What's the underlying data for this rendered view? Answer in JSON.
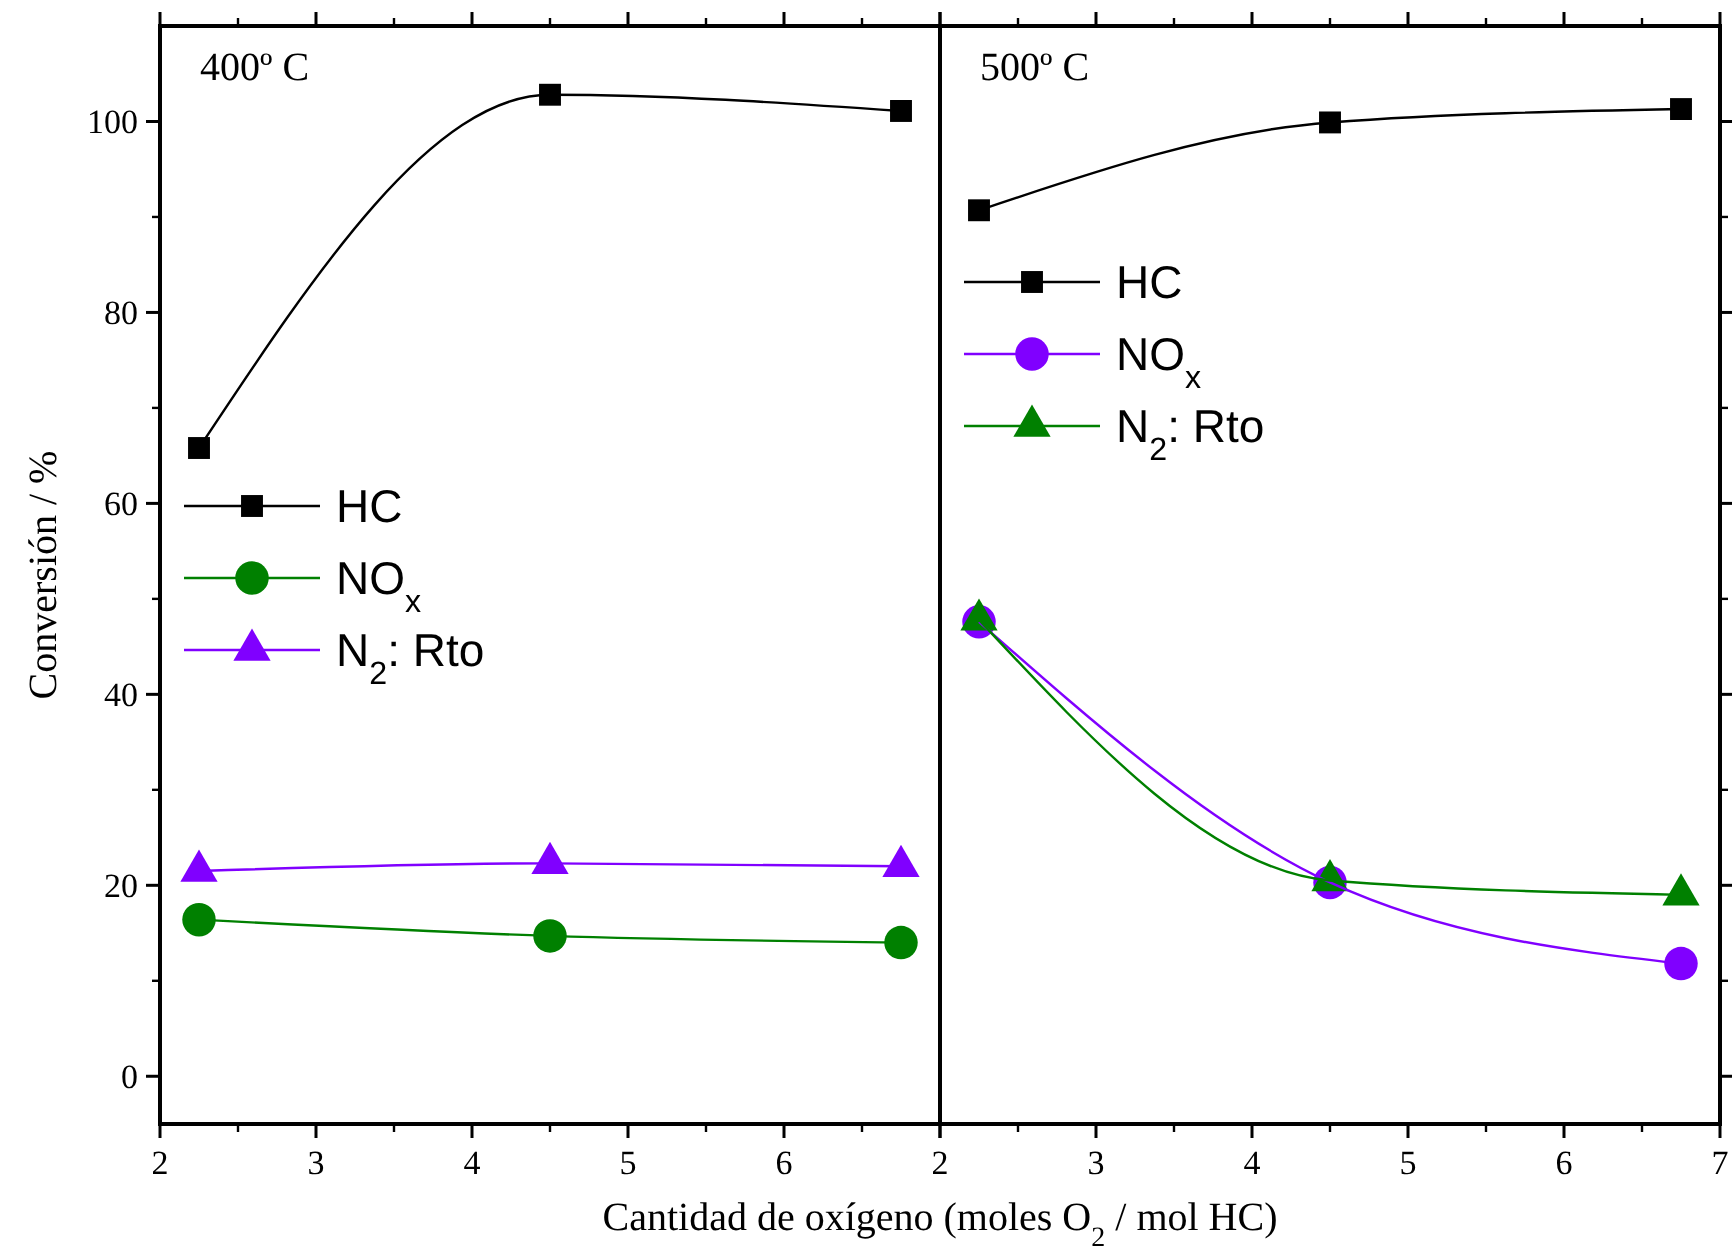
{
  "chart_data": [
    {
      "type": "line",
      "title": "400º C",
      "ylabel": "Conversión / %",
      "xlabel": "Cantidad de oxígeno (moles O$_{2}$ / mol HC)",
      "xlim": [
        2,
        7
      ],
      "xticks": [
        2,
        3,
        4,
        5,
        6,
        {
          "value": 7,
          "label": null
        }
      ],
      "ylim": [
        -5,
        110
      ],
      "yticks": [
        0,
        20,
        40,
        60,
        80,
        100
      ],
      "legend": "left",
      "line_style": "solid",
      "series": [
        {
          "name": "HC",
          "color": "#000000",
          "marker": "square",
          "x": [
            2.25,
            4.5,
            6.75
          ],
          "values": [
            65.8,
            102.8,
            101.1
          ]
        },
        {
          "name": "NO$_{x}$",
          "color": "#008000",
          "marker": "circle",
          "x": [
            2.25,
            4.5,
            6.75
          ],
          "values": [
            16.4,
            14.7,
            14.0
          ]
        },
        {
          "name": "N$_{2}$: Rto",
          "color": "#8000ff",
          "marker": "triangle",
          "x": [
            2.25,
            4.5,
            6.75
          ],
          "values": [
            21.5,
            22.3,
            22.0
          ]
        }
      ]
    },
    {
      "type": "line",
      "title": "500º C",
      "xlim": [
        2,
        7
      ],
      "xticks": [
        2,
        3,
        4,
        5,
        6,
        7
      ],
      "ylim": [
        -5,
        110
      ],
      "yticks": [
        0,
        20,
        40,
        60,
        80,
        100
      ],
      "tick_labels": "x",
      "legend": "top left",
      "line_style": "solid",
      "series": [
        {
          "name": "HC",
          "color": "#000000",
          "marker": "square",
          "x": [
            2.25,
            4.5,
            6.75
          ],
          "values": [
            90.7,
            99.9,
            101.3
          ]
        },
        {
          "name": "NO$_{x}$",
          "color": "#8000ff",
          "marker": "circle",
          "x": [
            2.25,
            4.5,
            6.75
          ],
          "values": [
            47.6,
            20.3,
            11.8
          ]
        },
        {
          "name": "N$_{2}$: Rto",
          "color": "#008000",
          "marker": "triangle",
          "x": [
            2.25,
            4.5,
            6.75
          ],
          "values": [
            47.8,
            20.5,
            19.0
          ]
        }
      ]
    }
  ]
}
